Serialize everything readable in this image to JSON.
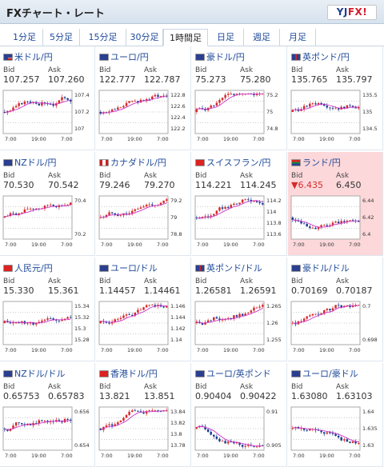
{
  "header": {
    "title": "FXチャート・レート",
    "logo": "YJFX!"
  },
  "tabs": [
    {
      "label": "1分足",
      "active": false
    },
    {
      "label": "5分足",
      "active": false
    },
    {
      "label": "15分足",
      "active": false
    },
    {
      "label": "30分足",
      "active": false
    },
    {
      "label": "1時間足",
      "active": true
    },
    {
      "label": "日足",
      "active": false
    },
    {
      "label": "週足",
      "active": false
    },
    {
      "label": "月足",
      "active": false
    }
  ],
  "labels": {
    "bid": "Bid",
    "ask": "Ask"
  },
  "pairs": [
    {
      "name": "米ドル/円",
      "bid": "107.257",
      "ask": "107.260",
      "ticks": [
        "107.4",
        "107.2",
        "107"
      ],
      "times": [
        "7:00",
        "19:00",
        "7:00"
      ],
      "flag": "us",
      "trend": "rise"
    },
    {
      "name": "ユーロ/円",
      "bid": "122.777",
      "ask": "122.787",
      "ticks": [
        "122.8",
        "122.6",
        "122.4",
        "122.2"
      ],
      "times": [
        "7:00",
        "19:00",
        "7:00"
      ],
      "flag": "eu",
      "trend": "rise"
    },
    {
      "name": "豪ドル/円",
      "bid": "75.273",
      "ask": "75.280",
      "ticks": [
        "75.2",
        "75",
        "74.8"
      ],
      "times": [
        "7:00",
        "19:00",
        "7:00"
      ],
      "flag": "au",
      "trend": "rise"
    },
    {
      "name": "英ポンド/円",
      "bid": "135.765",
      "ask": "135.797",
      "ticks": [
        "135.5",
        "135",
        "134.5"
      ],
      "times": [
        "7:00",
        "19:00",
        "7:00"
      ],
      "flag": "gb",
      "trend": "rise"
    },
    {
      "name": "NZドル/円",
      "bid": "70.530",
      "ask": "70.542",
      "ticks": [
        "70.4",
        "70.2"
      ],
      "times": [
        "7:00",
        "19:00",
        "7:00"
      ],
      "flag": "nz",
      "trend": "rise"
    },
    {
      "name": "カナダドル/円",
      "bid": "79.246",
      "ask": "79.270",
      "ticks": [
        "79.2",
        "79",
        "78.8"
      ],
      "times": [
        "7:00",
        "19:00",
        "7:00"
      ],
      "flag": "ca",
      "trend": "rise"
    },
    {
      "name": "スイスフラン/円",
      "bid": "114.221",
      "ask": "114.245",
      "ticks": [
        "114.2",
        "114",
        "113.8",
        "113.6"
      ],
      "times": [
        "7:00",
        "19:00",
        "7:00"
      ],
      "flag": "ch",
      "trend": "rise"
    },
    {
      "name": "ランド/円",
      "bid": "▼6.435",
      "ask": "6.450",
      "ticks": [
        "6.44",
        "6.42",
        "6.4"
      ],
      "times": [
        "7:00",
        "19:00",
        "7:00"
      ],
      "flag": "za",
      "trend": "flat",
      "highlight": true,
      "bid_down": true
    },
    {
      "name": "人民元/円",
      "bid": "15.330",
      "ask": "15.361",
      "ticks": [
        "15.34",
        "15.32",
        "15.3",
        "15.28"
      ],
      "times": [
        "7:00",
        "19:00",
        "7:00"
      ],
      "flag": "cn",
      "trend": "flat"
    },
    {
      "name": "ユーロ/ドル",
      "bid": "1.14457",
      "ask": "1.14461",
      "ticks": [
        "1.146",
        "1.144",
        "1.142",
        "1.14"
      ],
      "times": [
        "7:00",
        "19:00",
        "7:00"
      ],
      "flag": "eu",
      "trend": "rise"
    },
    {
      "name": "英ポンド/ドル",
      "bid": "1.26581",
      "ask": "1.26591",
      "ticks": [
        "1.265",
        "1.26",
        "1.255"
      ],
      "times": [
        "7:00",
        "19:00",
        "7:00"
      ],
      "flag": "gb",
      "trend": "rise"
    },
    {
      "name": "豪ドル/ドル",
      "bid": "0.70169",
      "ask": "0.70187",
      "ticks": [
        "0.7",
        "0.698"
      ],
      "times": [
        "7:00",
        "19:00",
        "7:00"
      ],
      "flag": "au",
      "trend": "rise"
    },
    {
      "name": "NZドル/ドル",
      "bid": "0.65753",
      "ask": "0.65783",
      "ticks": [
        "0.656",
        "0.654"
      ],
      "times": [
        "7:00",
        "19:00",
        "7:00"
      ],
      "flag": "nz",
      "trend": "rise"
    },
    {
      "name": "香港ドル/円",
      "bid": "13.821",
      "ask": "13.851",
      "ticks": [
        "13.84",
        "13.82",
        "13.8",
        "13.78"
      ],
      "times": [
        "7:00",
        "19:00",
        "7:00"
      ],
      "flag": "hk",
      "trend": "rise"
    },
    {
      "name": "ユーロ/英ポンド",
      "bid": "0.90404",
      "ask": "0.90422",
      "ticks": [
        "0.91",
        "0.905"
      ],
      "times": [
        "7:00",
        "19:00",
        "7:00"
      ],
      "flag": "eu",
      "trend": "fall"
    },
    {
      "name": "ユーロ/豪ドル",
      "bid": "1.63080",
      "ask": "1.63103",
      "ticks": [
        "1.64",
        "1.635",
        "1.63"
      ],
      "times": [
        "7:00",
        "19:00",
        "7:00"
      ],
      "flag": "eu",
      "trend": "fall"
    }
  ],
  "colors": {
    "link": "#1f4a99",
    "candle_up": "#d62b2b",
    "candle_down": "#1e3f8f",
    "moving_average": "#cc33cc",
    "highlight": "#fdd8da",
    "down_text": "#d62b2b"
  }
}
